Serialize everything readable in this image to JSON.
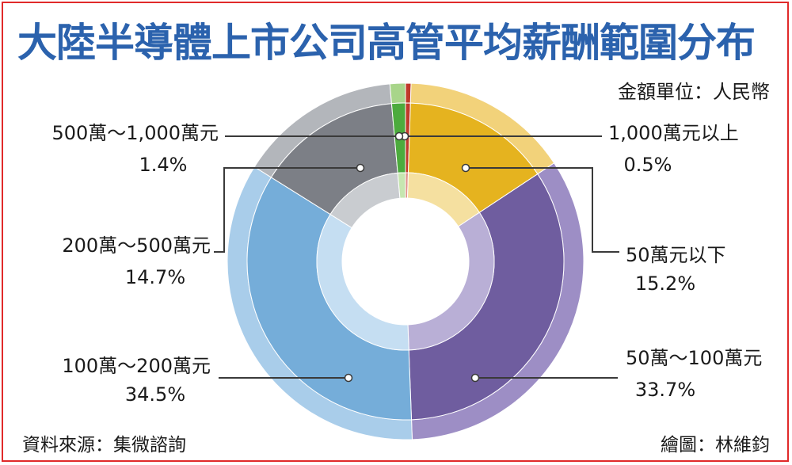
{
  "title": "大陸半導體上市公司高管平均薪酬範圍分布",
  "unit_note": "金額單位：人民幣",
  "source": "資料來源：集微諮詢",
  "credit": "繪圖：林維鈞",
  "chart_data": {
    "type": "pie",
    "variant": "donut",
    "categories": [
      "1,000萬元以上",
      "50萬元以下",
      "50萬～100萬元",
      "100萬～200萬元",
      "200萬～500萬元",
      "500萬～1,000萬元"
    ],
    "values": [
      0.5,
      15.2,
      33.7,
      34.5,
      14.7,
      1.4
    ],
    "value_labels": [
      "0.5%",
      "15.2%",
      "33.7%",
      "34.5%",
      "14.7%",
      "1.4%"
    ],
    "colors_outer": [
      "#c0392b",
      "#f2d27a",
      "#9d8ec5",
      "#a9cdea",
      "#b3b6bb",
      "#a8d58a"
    ],
    "colors_inner": [
      "#c0392b",
      "#e5b31f",
      "#6f5d9f",
      "#75add9",
      "#7c7f86",
      "#4cab3d"
    ],
    "colors_ring": [
      "#e0908a",
      "#f5e0a0",
      "#b9afd6",
      "#c5def2",
      "#c9ccd0",
      "#c6e6b0"
    ]
  }
}
